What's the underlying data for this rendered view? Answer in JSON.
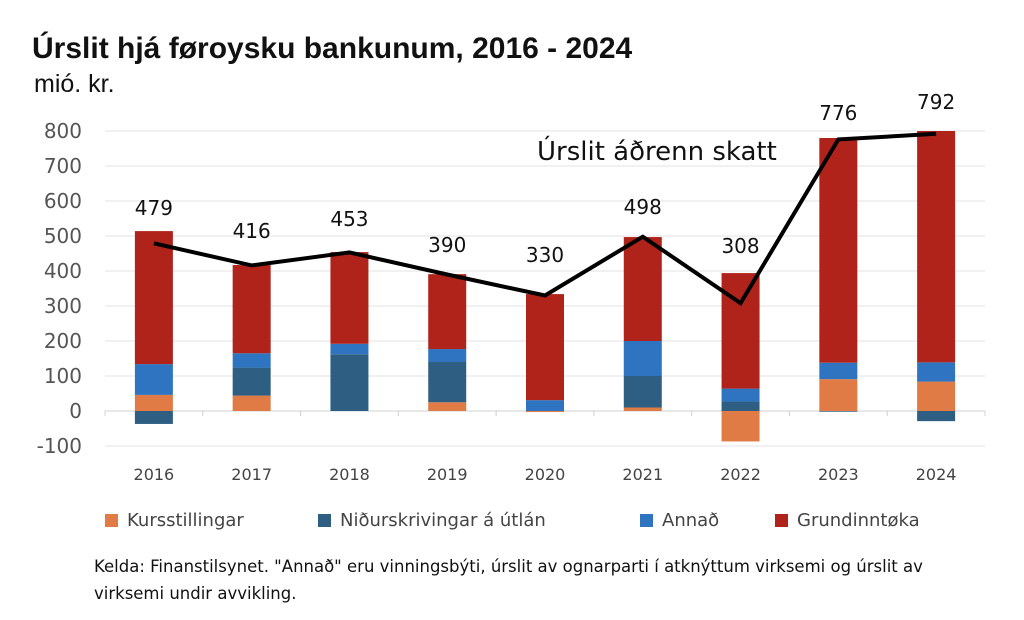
{
  "chart_data": {
    "type": "bar",
    "stacked": true,
    "title": "Úrslit hjá føroysku bankunum, 2016 - 2024",
    "ylabel": "mió. kr.",
    "xlabel": "",
    "ylim": [
      -100,
      800
    ],
    "yticks": [
      -100,
      0,
      100,
      200,
      300,
      400,
      500,
      600,
      700,
      800
    ],
    "grid": true,
    "legend_position": "bottom",
    "categories": [
      "2016",
      "2017",
      "2018",
      "2019",
      "2020",
      "2021",
      "2022",
      "2023",
      "2024"
    ],
    "series": [
      {
        "name": "Kursstillingar",
        "color": "#E07B45",
        "values": [
          46,
          44,
          0,
          25,
          -3,
          10,
          -87,
          91,
          84
        ]
      },
      {
        "name": "Niðurskrivingar á útlán",
        "color": "#2E5F82",
        "values": [
          -37,
          80,
          162,
          115,
          0,
          90,
          27,
          -2,
          -29
        ]
      },
      {
        "name": "Annað",
        "color": "#2F74C0",
        "values": [
          88,
          41,
          30,
          37,
          31,
          100,
          37,
          47,
          55
        ]
      },
      {
        "name": "Grundinntøka",
        "color": "#B0231A",
        "values": [
          380,
          252,
          262,
          214,
          303,
          297,
          330,
          642,
          661
        ]
      }
    ],
    "line": {
      "name": "Úrslit áðrenn skatt",
      "color": "#000000",
      "values": [
        479,
        416,
        453,
        390,
        330,
        498,
        308,
        776,
        792
      ]
    }
  },
  "note": "Kelda: Finanstilsynet. \"Annað\" eru vinningsbýti, úrslit av ognarparti í atknýttum virksemi og úrslit av virksemi undir avvikling."
}
